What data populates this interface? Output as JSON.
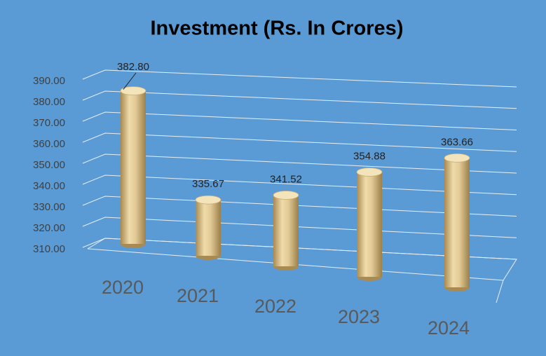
{
  "chart_data": {
    "type": "bar",
    "title": "Investment (Rs. In Crores)",
    "categories": [
      "2020",
      "2021",
      "2022",
      "2023",
      "2024"
    ],
    "values": [
      382.8,
      335.67,
      341.52,
      354.88,
      363.66
    ],
    "value_labels": [
      "382.80",
      "335.67",
      "341.52",
      "354.88",
      "363.66"
    ],
    "color": "#d9c08a",
    "ylim": [
      310,
      390
    ],
    "yticks": [
      {
        "value": 310,
        "label": "310.00"
      },
      {
        "value": 320,
        "label": "320.00"
      },
      {
        "value": 330,
        "label": "330.00"
      },
      {
        "value": 340,
        "label": "340.00"
      },
      {
        "value": 350,
        "label": "350.00"
      },
      {
        "value": 360,
        "label": "360.00"
      },
      {
        "value": 370,
        "label": "370.00"
      },
      {
        "value": 380,
        "label": "380.00"
      },
      {
        "value": 390,
        "label": "390.00"
      }
    ],
    "grid": true
  }
}
